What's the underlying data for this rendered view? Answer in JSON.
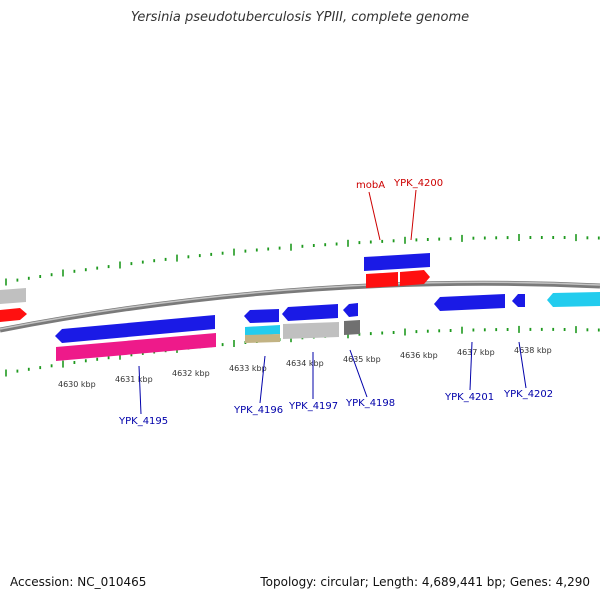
{
  "title": "Yersinia pseudotuberculosis YPIII, complete genome",
  "footer": {
    "accession": "Accession: NC_010465",
    "stats": "Topology: circular; Length: 4,689,441 bp; Genes: 4,290"
  },
  "ticks": [
    "4630 kbp",
    "4631 kbp",
    "4632 kbp",
    "4633 kbp",
    "4634 kbp",
    "4635 kbp",
    "4636 kbp",
    "4637 kbp",
    "4638 kbp"
  ],
  "gene_labels": {
    "mobA": "mobA",
    "ypk4200": "YPK_4200",
    "ypk4195": "YPK_4195",
    "ypk4196": "YPK_4196",
    "ypk4197": "YPK_4197",
    "ypk4198": "YPK_4198",
    "ypk4201": "YPK_4201",
    "ypk4202": "YPK_4202"
  },
  "colors": {
    "cds": "#1515e0",
    "rna": "#ff1010",
    "misc": "#c0c0c0",
    "pink": "#ee1a8a",
    "cyan": "#22ccee",
    "olive": "#c2b384",
    "dark": "#707070",
    "backbone": "#8a8a8a",
    "tick": "#1f9a1f",
    "label_red": "#cc0000",
    "label_blue": "#0000aa"
  }
}
